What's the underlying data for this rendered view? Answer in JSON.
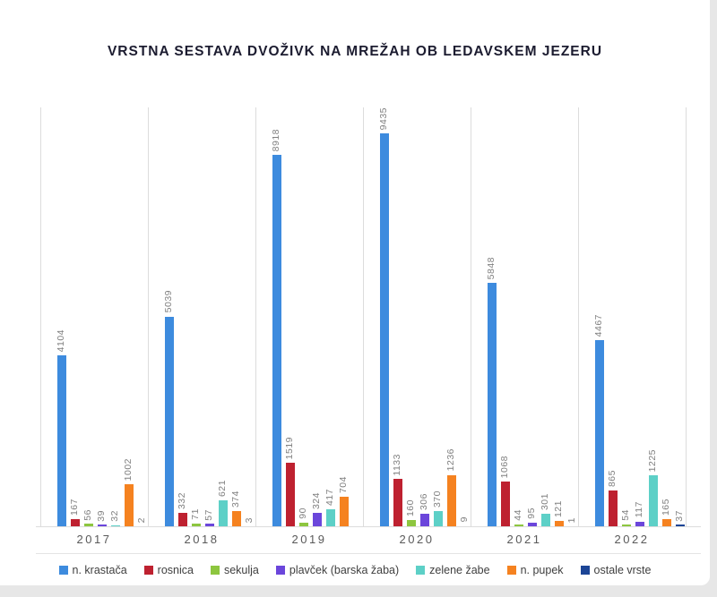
{
  "page": {
    "background": "#e7e7e7",
    "card_background": "#ffffff"
  },
  "chart_data": {
    "type": "bar",
    "title": "VRSTNA SESTAVA DVOŽIVK NA MREŽAH OB LEDAVSKEM JEZERU",
    "xlabel": "",
    "ylabel": "",
    "categories": [
      "2017",
      "2018",
      "2019",
      "2020",
      "2021",
      "2022"
    ],
    "series": [
      {
        "name": "n. krastača",
        "color": "#3D8BDE",
        "values": [
          4104,
          5039,
          8918,
          9435,
          5848,
          4467
        ]
      },
      {
        "name": "rosnica",
        "color": "#BE2130",
        "values": [
          167,
          332,
          1519,
          1133,
          1068,
          865
        ]
      },
      {
        "name": "sekulja",
        "color": "#8DC63F",
        "values": [
          56,
          71,
          90,
          160,
          44,
          54
        ]
      },
      {
        "name": "plavček (barska žaba)",
        "color": "#6B46DB",
        "values": [
          39,
          57,
          324,
          306,
          95,
          117
        ]
      },
      {
        "name": "zelene žabe",
        "color": "#5DD0C7",
        "values": [
          32,
          621,
          417,
          370,
          301,
          1225
        ]
      },
      {
        "name": "n. pupek",
        "color": "#F58220",
        "values": [
          1002,
          374,
          704,
          1236,
          121,
          165
        ]
      },
      {
        "name": "ostale vrste",
        "color": "#1C4596",
        "values": [
          2,
          3,
          null,
          9,
          1,
          37
        ]
      }
    ],
    "ylim": [
      0,
      10000
    ],
    "grid": "vertical-panel-separators",
    "legend_position": "bottom",
    "value_labels": "rotated-90-above-bars",
    "axis_line_color": "#dcdcdc",
    "value_label_color": "#808080",
    "year_label_color": "#595959",
    "title_color": "#1c1c30"
  }
}
